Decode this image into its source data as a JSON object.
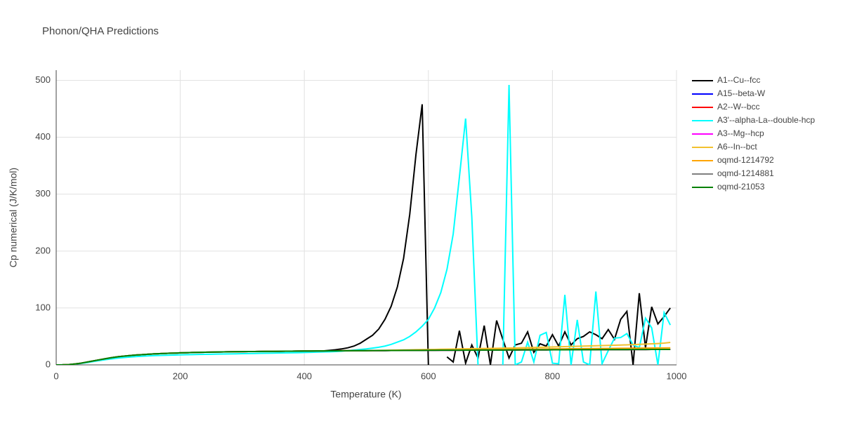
{
  "chart_data": {
    "type": "line",
    "title": "Phonon/QHA Predictions",
    "x_label": "Temperature (K)",
    "y_label": "Cp numerical (J/K/mol)",
    "xlim": [
      0,
      1000
    ],
    "ylim": [
      0,
      518
    ],
    "xticks": [
      0,
      200,
      400,
      600,
      800,
      1000
    ],
    "yticks": [
      0,
      100,
      200,
      300,
      400,
      500
    ],
    "grid": true,
    "legend": "right",
    "x": [
      0,
      10,
      20,
      30,
      40,
      50,
      60,
      70,
      80,
      90,
      100,
      110,
      120,
      130,
      140,
      150,
      160,
      170,
      180,
      190,
      200,
      210,
      220,
      230,
      240,
      250,
      260,
      270,
      280,
      290,
      300,
      310,
      320,
      330,
      340,
      350,
      360,
      370,
      380,
      390,
      400,
      410,
      420,
      430,
      440,
      450,
      460,
      470,
      480,
      490,
      500,
      510,
      520,
      530,
      540,
      550,
      560,
      570,
      580,
      590,
      600,
      610,
      620,
      630,
      640,
      650,
      660,
      670,
      680,
      690,
      700,
      710,
      720,
      730,
      740,
      750,
      760,
      770,
      780,
      790,
      800,
      810,
      820,
      830,
      840,
      850,
      860,
      870,
      880,
      890,
      900,
      910,
      920,
      930,
      940,
      950,
      960,
      970,
      980,
      990
    ],
    "series": [
      {
        "name": "A1--Cu--fcc",
        "color": "#000000",
        "values": [
          0,
          0.1,
          0.5,
          1.5,
          3,
          5,
          7,
          9,
          11,
          12.8,
          14.3,
          15.5,
          16.5,
          17.4,
          18.1,
          18.8,
          19.4,
          19.9,
          20.3,
          20.7,
          21.1,
          21.4,
          21.7,
          22,
          22.2,
          22.4,
          22.6,
          22.8,
          23,
          23.1,
          23.3,
          23.4,
          23.5,
          23.6,
          23.7,
          23.8,
          23.9,
          24,
          24.1,
          24.2,
          24.3,
          24.4,
          24.5,
          24.5,
          25.5,
          26.5,
          28,
          30,
          33,
          38,
          45,
          52,
          63,
          80,
          103,
          137,
          187,
          265,
          370,
          458,
          0,
          null,
          null,
          14,
          5,
          60,
          3,
          35,
          12,
          69,
          0,
          78,
          45,
          12,
          35,
          38,
          58,
          22,
          37,
          33,
          53,
          33,
          58,
          35,
          46,
          50,
          58,
          53,
          46,
          62,
          45,
          80,
          94,
          0,
          126,
          30,
          102,
          72,
          85,
          100
        ]
      },
      {
        "name": "A15--beta-W",
        "color": "#0000ff",
        "values": [
          0,
          0.1,
          0.5,
          1.5,
          3,
          5,
          7,
          9,
          11,
          12.8,
          14.3,
          15.5,
          16.5,
          17.4,
          18.1,
          18.8,
          19.4,
          19.9,
          20.3,
          20.7,
          21.1,
          21.4,
          21.7,
          22,
          22.2,
          22.4,
          22.6,
          22.8,
          23,
          23.1,
          23.3,
          23.4,
          23.5,
          23.6,
          23.7,
          23.8,
          23.9,
          24,
          24.1,
          24.2,
          24.3,
          24.4,
          24.5,
          24.5,
          24.6,
          24.7,
          24.8,
          24.8,
          24.9,
          25,
          25,
          25.1,
          25.1,
          25.2,
          25.3,
          25.3,
          25.4,
          25.4,
          25.5,
          25.5,
          25.6,
          25.6,
          25.7,
          25.7,
          25.8,
          25.8,
          25.9,
          25.9,
          26,
          26,
          26,
          26.1,
          26.1,
          26.2,
          26.2,
          26.3,
          26.3,
          26.3,
          26.4,
          26.4,
          26.5,
          26.5,
          26.5,
          26.6,
          26.6,
          26.7,
          26.7,
          26.7,
          26.8,
          26.8,
          26.9,
          26.9,
          26.9,
          27,
          27,
          27,
          27.1,
          27.1,
          27.2,
          27.2
        ]
      },
      {
        "name": "A2--W--bcc",
        "color": "#ff0000",
        "values": [
          0,
          0.1,
          0.5,
          1.5,
          3,
          5,
          7,
          9,
          11,
          12.8,
          14.3,
          15.5,
          16.5,
          17.4,
          18.1,
          18.8,
          19.4,
          19.9,
          20.3,
          20.7,
          21.1,
          21.4,
          21.7,
          22,
          22.2,
          22.4,
          22.6,
          22.8,
          23,
          23.1,
          23.3,
          23.4,
          23.5,
          23.6,
          23.7,
          23.8,
          23.9,
          24,
          24.1,
          24.2,
          24.3,
          24.4,
          24.5,
          24.5,
          24.6,
          24.7,
          24.8,
          24.8,
          24.9,
          25,
          25,
          25.1,
          25.1,
          25.2,
          25.3,
          25.3,
          25.4,
          25.4,
          25.5,
          25.5,
          25.6,
          25.6,
          25.7,
          25.7,
          25.8,
          25.8,
          25.9,
          25.9,
          26,
          26,
          26,
          26.1,
          26.1,
          26.2,
          26.2,
          26.3,
          26.3,
          26.3,
          26.4,
          26.4,
          26.5,
          26.5,
          26.5,
          26.6,
          26.6,
          26.7,
          26.7,
          26.7,
          26.8,
          26.8,
          26.9,
          26.9,
          26.9,
          27,
          27,
          27,
          27.1,
          27.1,
          27.2,
          27.2
        ]
      },
      {
        "name": "A3'--alpha-La--double-hcp",
        "color": "#00ffff",
        "values": [
          0,
          0.1,
          0.4,
          1.2,
          2.5,
          4,
          5.8,
          7.5,
          9.2,
          10.7,
          12,
          13,
          13.9,
          14.7,
          15.3,
          15.9,
          16.3,
          16.7,
          17,
          17.3,
          17.6,
          17.9,
          18.1,
          18.3,
          18.5,
          18.7,
          18.9,
          19.1,
          19.3,
          19.5,
          19.7,
          19.9,
          20.1,
          20.3,
          20.5,
          20.7,
          20.9,
          21.1,
          21.3,
          21.5,
          21.8,
          22.1,
          22.4,
          22.7,
          23,
          23.4,
          24,
          25,
          26,
          27,
          28,
          29.5,
          31,
          33,
          36,
          40,
          44,
          50,
          58,
          68,
          80,
          100,
          127,
          168,
          230,
          330,
          433,
          260,
          0,
          null,
          null,
          null,
          0,
          492,
          0,
          5,
          40,
          5,
          52,
          57,
          3,
          2,
          123,
          0,
          79,
          5,
          0,
          129,
          2,
          25,
          47,
          48,
          55,
          35,
          30,
          82,
          65,
          0,
          92,
          70
        ]
      },
      {
        "name": "A3--Mg--hcp",
        "color": "#ff00ff",
        "values": [
          0,
          0.1,
          0.5,
          1.5,
          3,
          5,
          7,
          9,
          11,
          12.8,
          14.3,
          15.5,
          16.5,
          17.4,
          18.1,
          18.8,
          19.4,
          19.9,
          20.3,
          20.7,
          21.1,
          21.4,
          21.7,
          22,
          22.2,
          22.4,
          22.6,
          22.8,
          23,
          23.1,
          23.3,
          23.4,
          23.5,
          23.6,
          23.7,
          23.8,
          23.9,
          24,
          24.1,
          24.2,
          24.3,
          24.4,
          24.5,
          24.5,
          24.6,
          24.7,
          24.8,
          24.8,
          24.9,
          25,
          25,
          25.1,
          25.1,
          25.2,
          25.3,
          25.3,
          25.4,
          25.4,
          25.5,
          25.5,
          25.6,
          25.6,
          25.7,
          25.7,
          25.8,
          25.8,
          25.9,
          25.9,
          26,
          26,
          26,
          26.1,
          26.1,
          26.2,
          26.2,
          26.3,
          26.3,
          26.3,
          26.4,
          26.4,
          26.5,
          26.5,
          26.5,
          26.6,
          26.6,
          26.7,
          26.7,
          26.7,
          26.8,
          26.8,
          26.9,
          26.9,
          26.9,
          27,
          27,
          27,
          27.1,
          27.1,
          27.2,
          27.2
        ]
      },
      {
        "name": "A6--In--bct",
        "color": "#f2c12e",
        "values": [
          0,
          0.1,
          0.5,
          1.5,
          3,
          5,
          7,
          9,
          11,
          12.8,
          14.3,
          15.5,
          16.5,
          17.4,
          18.1,
          18.8,
          19.4,
          19.9,
          20.3,
          20.7,
          21.1,
          21.4,
          21.7,
          22,
          22.2,
          22.4,
          22.6,
          22.8,
          23,
          23.1,
          23.3,
          23.4,
          23.5,
          23.6,
          23.7,
          23.8,
          23.9,
          24,
          24.1,
          24.2,
          24.3,
          24.4,
          24.5,
          24.5,
          24.6,
          24.7,
          24.8,
          24.8,
          24.9,
          25,
          25,
          25.2,
          25.4,
          25.6,
          25.8,
          26,
          26.2,
          26.4,
          26.6,
          26.8,
          27,
          27.2,
          27.4,
          27.6,
          27.8,
          28,
          28.2,
          28.4,
          28.6,
          28.8,
          29,
          29.2,
          29.4,
          29.6,
          29.8,
          30,
          30.3,
          30.6,
          30.9,
          31.2,
          31.5,
          31.8,
          32.1,
          32.4,
          32.7,
          33,
          33.3,
          33.6,
          33.9,
          34.2,
          34.5,
          34.8,
          35.2,
          35.6,
          36,
          36.5,
          37,
          37.5,
          38.2,
          39.5
        ]
      },
      {
        "name": "oqmd-1214792",
        "color": "#ffa500",
        "values": [
          0,
          0.1,
          0.5,
          1.5,
          3,
          5,
          7,
          9,
          11,
          12.8,
          14.3,
          15.5,
          16.5,
          17.4,
          18.1,
          18.8,
          19.4,
          19.9,
          20.3,
          20.7,
          21.1,
          21.4,
          21.7,
          22,
          22.2,
          22.4,
          22.6,
          22.8,
          23,
          23.1,
          23.3,
          23.4,
          23.5,
          23.6,
          23.7,
          23.8,
          23.9,
          24,
          24.1,
          24.2,
          24.3,
          24.4,
          24.5,
          24.5,
          24.6,
          24.7,
          24.8,
          24.8,
          24.9,
          25,
          25,
          25.1,
          25.2,
          25.3,
          25.4,
          25.5,
          25.6,
          25.7,
          25.8,
          25.9,
          26,
          26.1,
          26.2,
          26.3,
          26.4,
          26.5,
          26.6,
          26.7,
          26.8,
          26.9,
          27,
          27.1,
          27.2,
          27.3,
          27.4,
          27.5,
          27.6,
          27.7,
          27.8,
          27.9,
          28,
          28.1,
          28.2,
          28.3,
          28.4,
          28.5,
          28.6,
          28.7,
          28.8,
          28.9,
          29,
          29.1,
          29.2,
          29.3,
          29.4,
          29.5,
          29.6,
          29.7,
          29.8,
          29.9
        ]
      },
      {
        "name": "oqmd-1214881",
        "color": "#808080",
        "values": [
          0,
          0.1,
          0.5,
          1.5,
          3,
          5,
          7,
          9,
          11,
          12.8,
          14.3,
          15.5,
          16.5,
          17.4,
          18.1,
          18.8,
          19.4,
          19.9,
          20.3,
          20.7,
          21.1,
          21.4,
          21.7,
          22,
          22.2,
          22.4,
          22.6,
          22.8,
          23,
          23.1,
          23.3,
          23.4,
          23.5,
          23.6,
          23.7,
          23.8,
          23.9,
          24,
          24.1,
          24.2,
          24.3,
          24.4,
          24.5,
          24.5,
          24.6,
          24.7,
          24.8,
          24.8,
          24.9,
          25,
          25,
          25.1,
          25.1,
          25.2,
          25.3,
          25.3,
          25.4,
          25.4,
          25.5,
          25.5,
          25.6,
          25.6,
          25.7,
          25.7,
          25.8,
          25.8,
          25.9,
          25.9,
          26,
          26,
          26,
          26.1,
          26.1,
          26.2,
          26.2,
          26.3,
          26.3,
          26.3,
          26.4,
          26.4,
          26.5,
          26.5,
          26.5,
          26.6,
          26.6,
          26.7,
          26.7,
          26.7,
          26.8,
          26.8,
          26.9,
          26.9,
          26.9,
          27,
          27,
          27,
          27.1,
          27.1,
          27.2,
          27.2
        ]
      },
      {
        "name": "oqmd-21053",
        "color": "#008000",
        "values": [
          0,
          0.1,
          0.5,
          1.5,
          3,
          5,
          7,
          9,
          11,
          12.8,
          14.3,
          15.5,
          16.5,
          17.4,
          18.1,
          18.8,
          19.4,
          19.9,
          20.3,
          20.7,
          21.1,
          21.4,
          21.7,
          22,
          22.2,
          22.4,
          22.6,
          22.8,
          23,
          23.1,
          23.3,
          23.4,
          23.5,
          23.6,
          23.7,
          23.8,
          23.9,
          24,
          24.1,
          24.2,
          24.3,
          24.4,
          24.5,
          24.5,
          24.6,
          24.7,
          24.8,
          24.8,
          24.9,
          25,
          25,
          25.1,
          25.1,
          25.2,
          25.3,
          25.3,
          25.4,
          25.4,
          25.5,
          25.5,
          25.6,
          25.6,
          25.7,
          25.7,
          25.8,
          25.8,
          25.9,
          25.9,
          26,
          26,
          26,
          26.1,
          26.1,
          26.2,
          26.2,
          26.3,
          26.3,
          26.3,
          26.4,
          26.4,
          26.5,
          26.5,
          26.5,
          26.6,
          26.6,
          26.7,
          26.7,
          26.7,
          26.8,
          26.8,
          26.9,
          26.9,
          26.9,
          27,
          27,
          27,
          27.1,
          27.1,
          27.2,
          27.2
        ]
      }
    ]
  }
}
